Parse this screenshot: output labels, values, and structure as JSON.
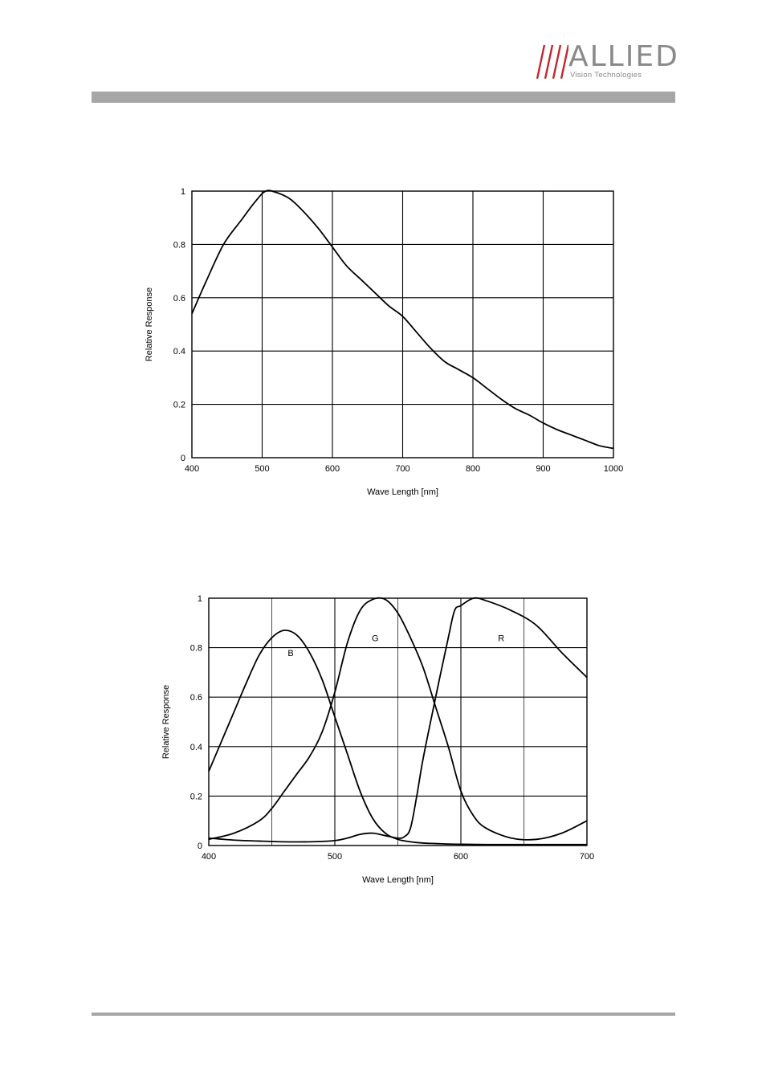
{
  "brand": {
    "name": "ALLIED",
    "tagline": "Vision Technologies",
    "slash_color": "#c0282d",
    "text_color": "#8a8a8a"
  },
  "chart_data": [
    {
      "type": "line",
      "xlabel": "Wave Length [nm]",
      "ylabel": "Relative Response",
      "xlim": [
        400,
        1000
      ],
      "ylim": [
        0,
        1
      ],
      "xticks": [
        400,
        500,
        600,
        700,
        800,
        900,
        1000
      ],
      "yticks": [
        0,
        0.2,
        0.4,
        0.6,
        0.8,
        1
      ],
      "xtick_labels": [
        "400",
        "500",
        "600",
        "700",
        "800",
        "900",
        "1000"
      ],
      "ytick_labels": [
        "0",
        "0.2",
        "0.4",
        "0.6",
        "0.8",
        "1"
      ],
      "grid": true,
      "series": [
        {
          "x": [
            400,
            420,
            445,
            470,
            490,
            505,
            520,
            540,
            560,
            580,
            600,
            620,
            640,
            660,
            680,
            700,
            720,
            740,
            760,
            780,
            800,
            820,
            840,
            860,
            880,
            900,
            920,
            940,
            960,
            980,
            1000
          ],
          "y": [
            0.54,
            0.66,
            0.8,
            0.89,
            0.96,
            1.0,
            0.995,
            0.97,
            0.92,
            0.86,
            0.79,
            0.72,
            0.67,
            0.62,
            0.57,
            0.53,
            0.47,
            0.41,
            0.36,
            0.33,
            0.3,
            0.26,
            0.22,
            0.185,
            0.16,
            0.13,
            0.105,
            0.085,
            0.065,
            0.045,
            0.035
          ]
        }
      ]
    },
    {
      "type": "line",
      "xlabel": "Wave Length [nm]",
      "ylabel": "Relative Response",
      "xlim": [
        400,
        700
      ],
      "ylim": [
        0,
        1
      ],
      "xticks": [
        400,
        500,
        600,
        700
      ],
      "xtick_labels": [
        "400",
        "500",
        "600",
        "700"
      ],
      "xgrid": [
        450,
        500,
        550,
        600,
        650
      ],
      "yticks": [
        0,
        0.2,
        0.4,
        0.6,
        0.8,
        1
      ],
      "ytick_labels": [
        "0",
        "0.2",
        "0.4",
        "0.6",
        "0.8",
        "1"
      ],
      "grid": true,
      "series": [
        {
          "name": "B",
          "x": [
            400,
            410,
            420,
            430,
            440,
            450,
            460,
            470,
            480,
            490,
            500,
            510,
            520,
            530,
            540,
            550,
            560,
            570,
            580,
            590,
            600,
            620,
            650,
            700
          ],
          "y": [
            0.3,
            0.42,
            0.54,
            0.66,
            0.77,
            0.84,
            0.87,
            0.85,
            0.78,
            0.67,
            0.52,
            0.37,
            0.22,
            0.11,
            0.05,
            0.025,
            0.015,
            0.01,
            0.008,
            0.006,
            0.005,
            0.004,
            0.004,
            0.004
          ],
          "label_at": [
            465,
            0.78
          ]
        },
        {
          "name": "G",
          "x": [
            400,
            420,
            440,
            450,
            460,
            470,
            480,
            490,
            500,
            510,
            520,
            530,
            540,
            550,
            560,
            570,
            580,
            590,
            600,
            610,
            620,
            640,
            660,
            680,
            700
          ],
          "y": [
            0.025,
            0.05,
            0.1,
            0.15,
            0.22,
            0.29,
            0.36,
            0.46,
            0.62,
            0.82,
            0.95,
            0.995,
            0.995,
            0.94,
            0.84,
            0.72,
            0.56,
            0.4,
            0.22,
            0.12,
            0.07,
            0.03,
            0.025,
            0.05,
            0.1
          ],
          "label_at": [
            532,
            0.84
          ]
        },
        {
          "name": "R",
          "x": [
            400,
            420,
            440,
            460,
            480,
            500,
            510,
            520,
            530,
            540,
            550,
            555,
            560,
            565,
            570,
            580,
            590,
            595,
            600,
            610,
            620,
            640,
            660,
            680,
            700
          ],
          "y": [
            0.03,
            0.022,
            0.018,
            0.015,
            0.015,
            0.02,
            0.03,
            0.045,
            0.05,
            0.04,
            0.03,
            0.035,
            0.07,
            0.2,
            0.35,
            0.6,
            0.84,
            0.95,
            0.97,
            1.0,
            0.99,
            0.95,
            0.89,
            0.78,
            0.68
          ],
          "label_at": [
            632,
            0.84
          ]
        }
      ]
    }
  ]
}
